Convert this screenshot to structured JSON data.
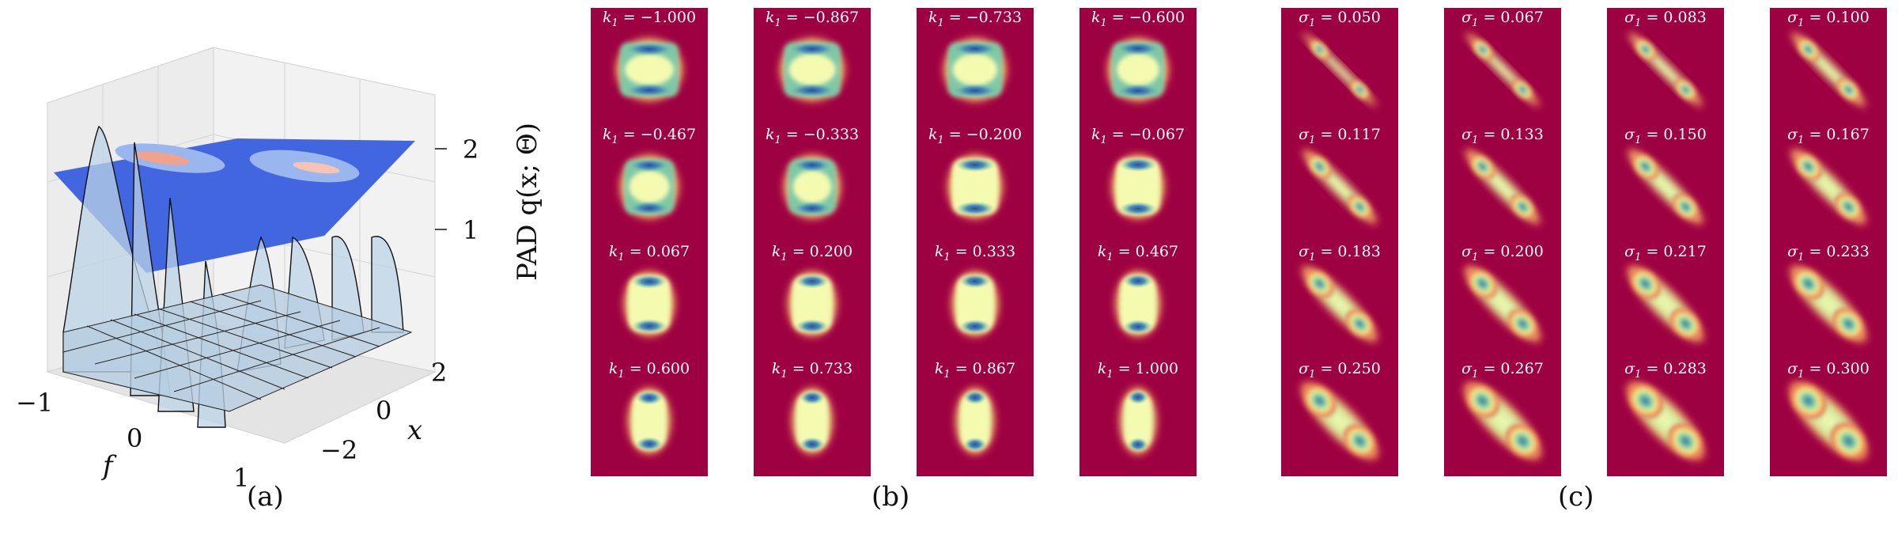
{
  "panels": {
    "a": "(a)",
    "b": "(b)",
    "c": "(c)"
  },
  "colors": {
    "heatmap_background": "#9e0142",
    "heatmap_mid": "#fdf3a6",
    "heatmap_peak": "#3a5fa8",
    "surface_top": "#4166e0",
    "surface_lines": "#8fb3d6"
  },
  "chart_data": [
    {
      "type": "surface3d",
      "panel": "(a)",
      "xlabel": "f",
      "ylabel": "x",
      "zlabel": "PAD q(x; Θ)",
      "x_ticks": [
        "−1",
        "0",
        "1"
      ],
      "y_ticks": [
        "−2",
        "0",
        "2"
      ],
      "z_ticks": [
        "1",
        "2"
      ],
      "xlim": [
        -1,
        1
      ],
      "ylim": [
        -3,
        3
      ],
      "zlim": [
        0,
        2.3
      ],
      "grid": true
    },
    {
      "type": "heatmap",
      "panel": "(b)",
      "param_symbol": "k",
      "param_sub": "1",
      "rows": 4,
      "cols": 4,
      "values": [
        "−1.000",
        "−0.867",
        "−0.733",
        "−0.600",
        "−0.467",
        "−0.333",
        "−0.200",
        "−0.067",
        "0.067",
        "0.200",
        "0.333",
        "0.467",
        "0.600",
        "0.733",
        "0.867",
        "1.000"
      ],
      "numeric": [
        -1.0,
        -0.867,
        -0.733,
        -0.6,
        -0.467,
        -0.333,
        -0.2,
        -0.067,
        0.067,
        0.2,
        0.333,
        0.467,
        0.6,
        0.733,
        0.867,
        1.0
      ]
    },
    {
      "type": "heatmap",
      "panel": "(c)",
      "param_symbol": "σ",
      "param_sub": "1",
      "rows": 4,
      "cols": 4,
      "values": [
        "0.050",
        "0.067",
        "0.083",
        "0.100",
        "0.117",
        "0.133",
        "0.150",
        "0.167",
        "0.183",
        "0.200",
        "0.217",
        "0.233",
        "0.250",
        "0.267",
        "0.283",
        "0.300"
      ],
      "numeric": [
        0.05,
        0.067,
        0.083,
        0.1,
        0.117,
        0.133,
        0.15,
        0.167,
        0.183,
        0.2,
        0.217,
        0.233,
        0.25,
        0.267,
        0.283,
        0.3
      ]
    }
  ]
}
